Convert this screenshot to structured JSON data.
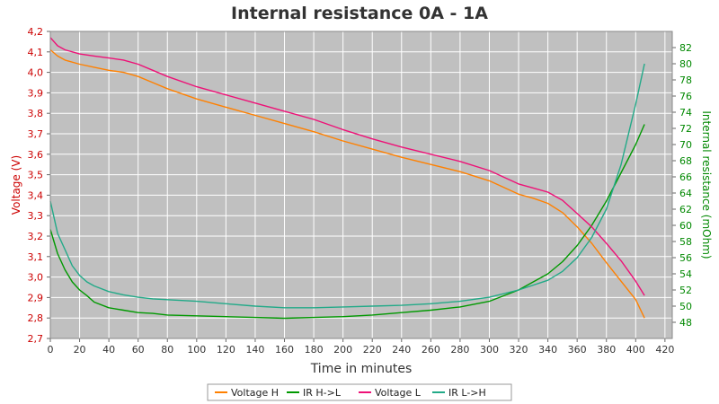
{
  "chart_data": {
    "type": "line",
    "title": "Internal resistance  0A - 1A",
    "xlabel": "Time in minutes",
    "ylabel_left": "Voltage (V)",
    "ylabel_right": "Internal resistance (mOhm)",
    "xlim": [
      0,
      425
    ],
    "ylim_left": [
      2.7,
      4.2
    ],
    "ylim_right": [
      46,
      84
    ],
    "x_ticks": [
      0,
      20,
      40,
      60,
      80,
      100,
      120,
      140,
      160,
      180,
      200,
      220,
      240,
      260,
      280,
      300,
      320,
      340,
      360,
      380,
      400,
      420
    ],
    "y_left_ticks": [
      "2,7",
      "2,8",
      "2,9",
      "3,0",
      "3,1",
      "3,2",
      "3,3",
      "3,4",
      "3,5",
      "3,6",
      "3,7",
      "3,8",
      "3,9",
      "4,0",
      "4,1",
      "4,2"
    ],
    "y_right_ticks": [
      48,
      50,
      52,
      54,
      56,
      58,
      60,
      62,
      64,
      66,
      68,
      70,
      72,
      74,
      76,
      78,
      80,
      82
    ],
    "grid": true,
    "legend_position": "bottom",
    "colors": {
      "plot_bg": "#c0c0c0",
      "grid": "#ffffff",
      "left_axis": "#cc0000",
      "right_axis": "#008800"
    },
    "series": [
      {
        "name": "Voltage H",
        "axis": "left",
        "color": "#ff8000",
        "x": [
          0,
          5,
          10,
          20,
          30,
          40,
          50,
          60,
          70,
          80,
          100,
          120,
          140,
          160,
          180,
          200,
          220,
          240,
          260,
          280,
          300,
          320,
          330,
          340,
          350,
          360,
          370,
          380,
          390,
          400,
          406
        ],
        "y": [
          4.11,
          4.08,
          4.06,
          4.04,
          4.025,
          4.01,
          4.0,
          3.98,
          3.95,
          3.92,
          3.87,
          3.83,
          3.79,
          3.75,
          3.71,
          3.665,
          3.625,
          3.585,
          3.55,
          3.515,
          3.47,
          3.405,
          3.385,
          3.36,
          3.315,
          3.245,
          3.165,
          3.07,
          2.98,
          2.89,
          2.8
        ]
      },
      {
        "name": "IR H->L",
        "axis": "right",
        "color": "#009900",
        "x": [
          0,
          5,
          10,
          15,
          20,
          25,
          30,
          40,
          50,
          60,
          70,
          80,
          100,
          120,
          140,
          160,
          180,
          200,
          220,
          240,
          260,
          280,
          300,
          320,
          340,
          350,
          360,
          370,
          380,
          390,
          400,
          406
        ],
        "y": [
          59.5,
          56.5,
          54.5,
          53,
          52,
          51.3,
          50.5,
          49.8,
          49.5,
          49.2,
          49.1,
          48.9,
          48.8,
          48.7,
          48.6,
          48.5,
          48.6,
          48.7,
          48.9,
          49.2,
          49.5,
          49.9,
          50.6,
          52,
          54,
          55.5,
          57.5,
          60,
          63,
          66.5,
          70,
          72.5
        ]
      },
      {
        "name": "Voltage L",
        "axis": "left",
        "color": "#ee1177",
        "x": [
          0,
          5,
          10,
          20,
          30,
          40,
          50,
          60,
          70,
          80,
          100,
          120,
          140,
          160,
          180,
          200,
          220,
          240,
          260,
          280,
          300,
          320,
          330,
          340,
          350,
          360,
          370,
          380,
          390,
          400,
          406
        ],
        "y": [
          4.17,
          4.13,
          4.11,
          4.09,
          4.08,
          4.07,
          4.06,
          4.04,
          4.01,
          3.98,
          3.93,
          3.89,
          3.85,
          3.81,
          3.77,
          3.72,
          3.675,
          3.635,
          3.6,
          3.565,
          3.52,
          3.455,
          3.435,
          3.415,
          3.375,
          3.31,
          3.245,
          3.165,
          3.08,
          2.98,
          2.91
        ]
      },
      {
        "name": "IR L->H",
        "axis": "right",
        "color": "#22aa88",
        "x": [
          0,
          5,
          10,
          15,
          20,
          25,
          30,
          40,
          50,
          60,
          70,
          80,
          100,
          120,
          140,
          160,
          180,
          200,
          220,
          240,
          260,
          280,
          300,
          320,
          340,
          350,
          360,
          370,
          380,
          390,
          400,
          406
        ],
        "y": [
          63,
          59,
          57,
          55,
          53.8,
          53,
          52.5,
          51.8,
          51.4,
          51.1,
          50.9,
          50.8,
          50.6,
          50.3,
          50,
          49.8,
          49.8,
          49.9,
          50,
          50.1,
          50.3,
          50.6,
          51.1,
          52,
          53.2,
          54.3,
          56,
          58.5,
          62,
          67.5,
          75,
          80
        ]
      }
    ]
  }
}
